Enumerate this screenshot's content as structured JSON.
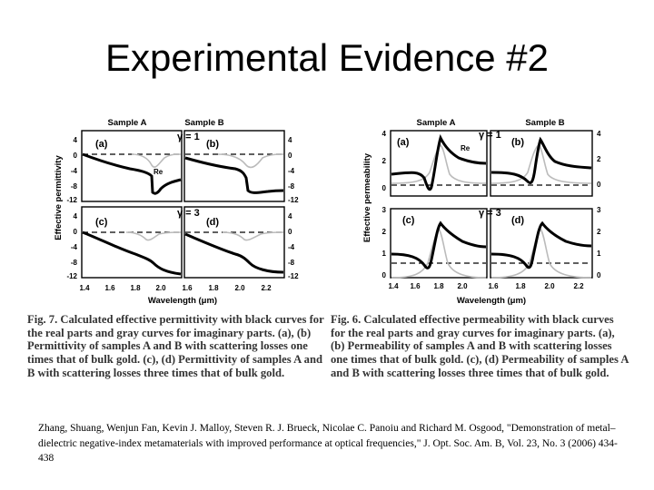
{
  "title": "Experimental Evidence #2",
  "figure_left": {
    "sample_a": "Sample A",
    "sample_b": "Sample B",
    "gamma_top": "γ = 1",
    "gamma_bottom": "γ = 3",
    "ylabel": "Effective permittivity",
    "xlabel": "Wavelength (μm)",
    "panel_a": "(a)",
    "panel_b": "(b)",
    "panel_c": "(c)",
    "panel_d": "(d)",
    "re_label": "Re",
    "yticks_top": [
      "4",
      "0",
      "-4",
      "-8",
      "-12"
    ],
    "yticks_bottom": [
      "4",
      "0",
      "-4",
      "-8",
      "-12"
    ],
    "yticks_right_top": [
      "4",
      "0",
      "-4",
      "-8",
      "-12"
    ],
    "yticks_right_bottom": [
      "4",
      "0",
      "-4",
      "-8",
      "-12"
    ],
    "xticks_a": [
      "1.4",
      "1.6",
      "1.8",
      "2.0"
    ],
    "xticks_b": [
      "1.6",
      "1.8",
      "2.0",
      "2.2"
    ]
  },
  "figure_right": {
    "sample_a": "Sample A",
    "sample_b": "Sample B",
    "gamma_top": "γ = 1",
    "gamma_bottom": "γ = 3",
    "ylabel": "Effective permeability",
    "xlabel": "Wavelength (μm)",
    "panel_a": "(a)",
    "panel_b": "(b)",
    "panel_c": "(c)",
    "panel_d": "(d)",
    "re_label": "Re",
    "yticks_top_left": [
      "4",
      "2",
      "0"
    ],
    "yticks_top_right": [
      "4",
      "2",
      "0"
    ],
    "yticks_bottom_left": [
      "3",
      "2",
      "1",
      "0"
    ],
    "yticks_bottom_right": [
      "3",
      "2",
      "1",
      "0"
    ],
    "xticks_a": [
      "1.4",
      "1.6",
      "1.8",
      "2.0"
    ],
    "xticks_b": [
      "1.6",
      "1.8",
      "2.0",
      "2.2"
    ]
  },
  "caption_left": "Fig. 7. Calculated effective permittivity with black curves for the real parts and gray curves for imaginary parts. (a), (b) Permittivity of samples A and B with scattering losses one times that of bulk gold. (c), (d) Permittivity of samples A and B with scattering losses three times that of bulk gold.",
  "caption_right": "Fig. 6. Calculated effective permeability with black curves for the real parts and gray curves for imaginary parts. (a), (b) Permeability of samples A and B with scattering losses one times that of bulk gold. (c), (d) Permeability of samples A and B with scattering losses three times that of bulk gold.",
  "citation": "Zhang, Shuang, Wenjun Fan, Kevin J. Malloy, Steven R. J. Brueck, Nicolae C. Panoiu and Richard M. Osgood, \"Demonstration of metal–dielectric negative-index metamaterials with improved performance at optical frequencies,\" J. Opt. Soc. Am. B, Vol. 23, No. 3 (2006) 434-438",
  "colors": {
    "real_curve": "#000000",
    "imag_curve": "#bbbbbb",
    "zero_line": "#000000"
  }
}
